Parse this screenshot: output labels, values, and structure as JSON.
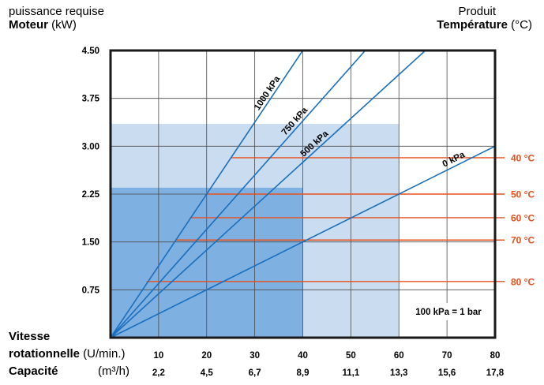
{
  "header": {
    "left_line1": "puissance requise",
    "left_line2_bold": "Moteur",
    "left_line2_unit": " (kW)",
    "right_line1": "Produit",
    "right_line2_bold": "Température",
    "right_line2_unit": " (°C)"
  },
  "footer": {
    "speed_label_line1": "Vitesse",
    "speed_label_line2_bold": "rotationnelle",
    "speed_label_unit": " (U/min.)",
    "capacity_label": "Capacité",
    "capacity_unit": "(m³/h)"
  },
  "chart_data": {
    "type": "line",
    "y_axis": {
      "label": "Moteur (kW)",
      "range": [
        0,
        4.5
      ],
      "ticks": [
        "0.75",
        "1.50",
        "2.25",
        "3.00",
        "3.75",
        "4.50"
      ],
      "tick_values": [
        0.75,
        1.5,
        2.25,
        3.0,
        3.75,
        4.5
      ]
    },
    "x_axis": {
      "label": "Vitesse rotationnelle (U/min.)",
      "range": [
        0,
        80
      ],
      "ticks": [
        "10",
        "20",
        "30",
        "40",
        "50",
        "60",
        "70",
        "80"
      ],
      "tick_values": [
        10,
        20,
        30,
        40,
        50,
        60,
        70,
        80
      ]
    },
    "x_axis_secondary": {
      "label": "Capacité (m³/h)",
      "ticks": [
        "2,2",
        "4,5",
        "6,7",
        "8,9",
        "11,1",
        "13,3",
        "15,6",
        "17,8"
      ]
    },
    "grid": true,
    "shaded_regions": [
      {
        "x": [
          0,
          60
        ],
        "y": [
          0,
          3.35
        ],
        "color": "#c9dcf0"
      },
      {
        "x": [
          0,
          40
        ],
        "y": [
          0,
          2.35
        ],
        "color": "#7fb0e2"
      }
    ],
    "series": [
      {
        "name": "1000 kPa",
        "points": [
          [
            0,
            0
          ],
          [
            40,
            4.5
          ]
        ],
        "color": "#1a6fbe"
      },
      {
        "name": "750 kPa",
        "points": [
          [
            0,
            0
          ],
          [
            53,
            4.5
          ]
        ],
        "color": "#1a6fbe"
      },
      {
        "name": "500 kPa",
        "points": [
          [
            0,
            0
          ],
          [
            65.5,
            4.5
          ]
        ],
        "color": "#1a6fbe"
      },
      {
        "name": "0 kPa",
        "points": [
          [
            0,
            0
          ],
          [
            80,
            3.0
          ]
        ],
        "color": "#1a6fbe"
      }
    ],
    "temperature_lines": [
      {
        "label": "40 °C",
        "y": 2.82,
        "x_start": 25
      },
      {
        "label": "50 °C",
        "y": 2.25,
        "x_start": 20
      },
      {
        "label": "60 °C",
        "y": 1.88,
        "x_start": 16.5
      },
      {
        "label": "70 °C",
        "y": 1.53,
        "x_start": 13.5
      },
      {
        "label": "80 °C",
        "y": 0.88,
        "x_start": 7.5
      }
    ],
    "temperature_color": "#e8501c",
    "annotation": "100 kPa = 1 bar"
  }
}
